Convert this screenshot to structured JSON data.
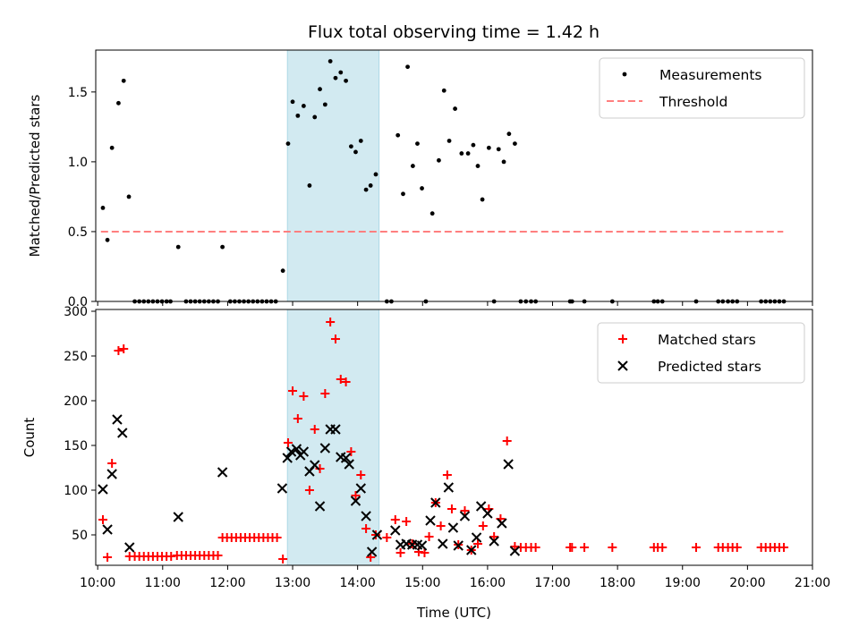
{
  "chart_data": {
    "title": "Flux total observing time = 1.42 h",
    "highlight": {
      "start": 12.92,
      "end": 14.33,
      "color": "#add8e6"
    },
    "x_ticks": [
      {
        "v": 10,
        "label": "10:00"
      },
      {
        "v": 11,
        "label": "11:00"
      },
      {
        "v": 12,
        "label": "12:00"
      },
      {
        "v": 13,
        "label": "13:00"
      },
      {
        "v": 14,
        "label": "14:00"
      },
      {
        "v": 15,
        "label": "15:00"
      },
      {
        "v": 16,
        "label": "16:00"
      },
      {
        "v": 17,
        "label": "17:00"
      },
      {
        "v": 18,
        "label": "18:00"
      },
      {
        "v": 19,
        "label": "19:00"
      },
      {
        "v": 20,
        "label": "20:00"
      },
      {
        "v": 21,
        "label": "21:00"
      }
    ],
    "xlim": [
      9.97,
      21.0
    ],
    "xlabel": "Time (UTC)",
    "top": {
      "type": "scatter",
      "ylabel": "Matched/Predicted stars",
      "ylim": [
        0,
        1.8
      ],
      "y_ticks": [
        {
          "v": 0,
          "label": "0.0"
        },
        {
          "v": 0.5,
          "label": "0.5"
        },
        {
          "v": 1.0,
          "label": "1.0"
        },
        {
          "v": 1.5,
          "label": "1.5"
        }
      ],
      "threshold": {
        "value": 0.5,
        "x_start": 10.05,
        "x_end": 20.55,
        "color": "#ff7f7f"
      },
      "legend": [
        {
          "name": "Measurements",
          "marker": "dot",
          "color": "#000000"
        },
        {
          "name": "Threshold",
          "marker": "dashed-line",
          "color": "#ff7f7f"
        }
      ],
      "points": [
        [
          10.08,
          0.67
        ],
        [
          10.15,
          0.44
        ],
        [
          10.22,
          1.1
        ],
        [
          10.32,
          1.42
        ],
        [
          10.4,
          1.58
        ],
        [
          10.48,
          0.75
        ],
        [
          10.57,
          0
        ],
        [
          10.64,
          0
        ],
        [
          10.71,
          0
        ],
        [
          10.78,
          0
        ],
        [
          10.85,
          0
        ],
        [
          10.92,
          0
        ],
        [
          10.99,
          0
        ],
        [
          11.06,
          0
        ],
        [
          11.12,
          0
        ],
        [
          11.24,
          0.39
        ],
        [
          11.36,
          0
        ],
        [
          11.43,
          0
        ],
        [
          11.5,
          0
        ],
        [
          11.57,
          0
        ],
        [
          11.64,
          0
        ],
        [
          11.71,
          0
        ],
        [
          11.78,
          0
        ],
        [
          11.85,
          0
        ],
        [
          11.92,
          0.39
        ],
        [
          12.04,
          0
        ],
        [
          12.11,
          0
        ],
        [
          12.18,
          0
        ],
        [
          12.25,
          0
        ],
        [
          12.32,
          0
        ],
        [
          12.39,
          0
        ],
        [
          12.46,
          0
        ],
        [
          12.53,
          0
        ],
        [
          12.6,
          0
        ],
        [
          12.67,
          0
        ],
        [
          12.74,
          0
        ],
        [
          12.85,
          0.22
        ],
        [
          12.93,
          1.13
        ],
        [
          13.0,
          1.43
        ],
        [
          13.08,
          1.33
        ],
        [
          13.17,
          1.4
        ],
        [
          13.26,
          0.83
        ],
        [
          13.34,
          1.32
        ],
        [
          13.42,
          1.52
        ],
        [
          13.5,
          1.41
        ],
        [
          13.58,
          1.72
        ],
        [
          13.66,
          1.6
        ],
        [
          13.74,
          1.64
        ],
        [
          13.82,
          1.58
        ],
        [
          13.9,
          1.11
        ],
        [
          13.97,
          1.07
        ],
        [
          14.05,
          1.15
        ],
        [
          14.13,
          0.8
        ],
        [
          14.2,
          0.83
        ],
        [
          14.28,
          0.91
        ],
        [
          14.45,
          0
        ],
        [
          14.52,
          0
        ],
        [
          14.62,
          1.19
        ],
        [
          14.7,
          0.77
        ],
        [
          14.77,
          1.68
        ],
        [
          14.85,
          0.97
        ],
        [
          14.92,
          1.13
        ],
        [
          14.99,
          0.81
        ],
        [
          15.05,
          0
        ],
        [
          15.15,
          0.63
        ],
        [
          15.25,
          1.01
        ],
        [
          15.33,
          1.51
        ],
        [
          15.41,
          1.15
        ],
        [
          15.5,
          1.38
        ],
        [
          15.6,
          1.06
        ],
        [
          15.7,
          1.06
        ],
        [
          15.78,
          1.12
        ],
        [
          15.85,
          0.97
        ],
        [
          15.92,
          0.73
        ],
        [
          16.02,
          1.1
        ],
        [
          16.1,
          0
        ],
        [
          16.17,
          1.09
        ],
        [
          16.25,
          1.0
        ],
        [
          16.33,
          1.2
        ],
        [
          16.42,
          1.13
        ],
        [
          16.51,
          0
        ],
        [
          16.59,
          0
        ],
        [
          16.67,
          0
        ],
        [
          16.74,
          0
        ],
        [
          17.27,
          0
        ],
        [
          17.3,
          0
        ],
        [
          17.49,
          0
        ],
        [
          17.92,
          0
        ],
        [
          18.56,
          0
        ],
        [
          18.62,
          0
        ],
        [
          18.69,
          0
        ],
        [
          19.21,
          0
        ],
        [
          19.55,
          0
        ],
        [
          19.62,
          0
        ],
        [
          19.7,
          0
        ],
        [
          19.77,
          0
        ],
        [
          19.84,
          0
        ],
        [
          20.21,
          0
        ],
        [
          20.28,
          0
        ],
        [
          20.35,
          0
        ],
        [
          20.42,
          0
        ],
        [
          20.49,
          0
        ],
        [
          20.56,
          0
        ]
      ]
    },
    "bottom": {
      "type": "scatter",
      "ylabel": "Count",
      "ylim": [
        16,
        302
      ],
      "y_ticks": [
        {
          "v": 50,
          "label": "50"
        },
        {
          "v": 100,
          "label": "100"
        },
        {
          "v": 150,
          "label": "150"
        },
        {
          "v": 200,
          "label": "200"
        },
        {
          "v": 250,
          "label": "250"
        },
        {
          "v": 300,
          "label": "300"
        }
      ],
      "legend": [
        {
          "name": "Matched stars",
          "marker": "plus",
          "color": "#ff0000"
        },
        {
          "name": "Predicted stars",
          "marker": "x",
          "color": "#000000"
        }
      ],
      "series": [
        {
          "name": "Matched stars",
          "marker": "plus",
          "color": "#ff0000",
          "points": [
            [
              10.08,
              67
            ],
            [
              10.15,
              25
            ],
            [
              10.22,
              130
            ],
            [
              10.32,
              256
            ],
            [
              10.4,
              258
            ],
            [
              10.49,
              26
            ],
            [
              10.57,
              26
            ],
            [
              10.64,
              26
            ],
            [
              10.71,
              26
            ],
            [
              10.78,
              26
            ],
            [
              10.85,
              26
            ],
            [
              10.92,
              26
            ],
            [
              10.99,
              26
            ],
            [
              11.06,
              26
            ],
            [
              11.13,
              26
            ],
            [
              11.22,
              27
            ],
            [
              11.29,
              27
            ],
            [
              11.36,
              27
            ],
            [
              11.43,
              27
            ],
            [
              11.5,
              27
            ],
            [
              11.57,
              27
            ],
            [
              11.64,
              27
            ],
            [
              11.71,
              27
            ],
            [
              11.78,
              27
            ],
            [
              11.85,
              27
            ],
            [
              11.92,
              47
            ],
            [
              11.99,
              47
            ],
            [
              12.06,
              47
            ],
            [
              12.13,
              47
            ],
            [
              12.2,
              47
            ],
            [
              12.27,
              47
            ],
            [
              12.34,
              47
            ],
            [
              12.41,
              47
            ],
            [
              12.48,
              47
            ],
            [
              12.55,
              47
            ],
            [
              12.62,
              47
            ],
            [
              12.69,
              47
            ],
            [
              12.76,
              47
            ],
            [
              12.85,
              23
            ],
            [
              12.93,
              153
            ],
            [
              13.0,
              211
            ],
            [
              13.08,
              180
            ],
            [
              13.17,
              205
            ],
            [
              13.26,
              100
            ],
            [
              13.34,
              168
            ],
            [
              13.42,
              124
            ],
            [
              13.5,
              208
            ],
            [
              13.58,
              288
            ],
            [
              13.66,
              269
            ],
            [
              13.74,
              224
            ],
            [
              13.82,
              221
            ],
            [
              13.9,
              143
            ],
            [
              13.97,
              94
            ],
            [
              14.05,
              117
            ],
            [
              14.13,
              57
            ],
            [
              14.2,
              25
            ],
            [
              14.28,
              50
            ],
            [
              14.45,
              47
            ],
            [
              14.58,
              67
            ],
            [
              14.66,
              30
            ],
            [
              14.75,
              65
            ],
            [
              14.84,
              40
            ],
            [
              14.94,
              31
            ],
            [
              15.03,
              30
            ],
            [
              15.1,
              48
            ],
            [
              15.2,
              86
            ],
            [
              15.28,
              60
            ],
            [
              15.38,
              117
            ],
            [
              15.45,
              79
            ],
            [
              15.55,
              39
            ],
            [
              15.65,
              77
            ],
            [
              15.75,
              33
            ],
            [
              15.85,
              40
            ],
            [
              15.93,
              60
            ],
            [
              16.02,
              79
            ],
            [
              16.1,
              48
            ],
            [
              16.2,
              68
            ],
            [
              16.3,
              155
            ],
            [
              16.42,
              37
            ],
            [
              16.51,
              36
            ],
            [
              16.59,
              36
            ],
            [
              16.67,
              36
            ],
            [
              16.74,
              36
            ],
            [
              17.27,
              36
            ],
            [
              17.3,
              36
            ],
            [
              17.49,
              36
            ],
            [
              17.92,
              36
            ],
            [
              18.56,
              36
            ],
            [
              18.62,
              36
            ],
            [
              18.69,
              36
            ],
            [
              19.21,
              36
            ],
            [
              19.55,
              36
            ],
            [
              19.62,
              36
            ],
            [
              19.7,
              36
            ],
            [
              19.77,
              36
            ],
            [
              19.84,
              36
            ],
            [
              20.21,
              36
            ],
            [
              20.28,
              36
            ],
            [
              20.35,
              36
            ],
            [
              20.42,
              36
            ],
            [
              20.49,
              36
            ],
            [
              20.56,
              36
            ]
          ]
        },
        {
          "name": "Predicted stars",
          "marker": "x",
          "color": "#000000",
          "points": [
            [
              10.08,
              101
            ],
            [
              10.15,
              56
            ],
            [
              10.22,
              118
            ],
            [
              10.3,
              179
            ],
            [
              10.38,
              164
            ],
            [
              10.49,
              36
            ],
            [
              11.24,
              70
            ],
            [
              11.92,
              120
            ],
            [
              12.84,
              102
            ],
            [
              12.92,
              136
            ],
            [
              12.98,
              143
            ],
            [
              13.06,
              146
            ],
            [
              13.12,
              139
            ],
            [
              13.17,
              143
            ],
            [
              13.26,
              121
            ],
            [
              13.34,
              128
            ],
            [
              13.42,
              82
            ],
            [
              13.5,
              147
            ],
            [
              13.58,
              168
            ],
            [
              13.66,
              168
            ],
            [
              13.74,
              137
            ],
            [
              13.82,
              136
            ],
            [
              13.87,
              129
            ],
            [
              13.97,
              88
            ],
            [
              14.05,
              102
            ],
            [
              14.13,
              71
            ],
            [
              14.22,
              31
            ],
            [
              14.3,
              50
            ],
            [
              14.58,
              55
            ],
            [
              14.66,
              39
            ],
            [
              14.75,
              40
            ],
            [
              14.84,
              39
            ],
            [
              14.92,
              39
            ],
            [
              14.99,
              38
            ],
            [
              15.12,
              66
            ],
            [
              15.2,
              86
            ],
            [
              15.31,
              40
            ],
            [
              15.4,
              103
            ],
            [
              15.47,
              58
            ],
            [
              15.55,
              38
            ],
            [
              15.65,
              71
            ],
            [
              15.75,
              33
            ],
            [
              15.83,
              47
            ],
            [
              15.9,
              82
            ],
            [
              16.0,
              74
            ],
            [
              16.1,
              43
            ],
            [
              16.22,
              63
            ],
            [
              16.32,
              129
            ],
            [
              16.42,
              32
            ]
          ]
        }
      ]
    }
  }
}
